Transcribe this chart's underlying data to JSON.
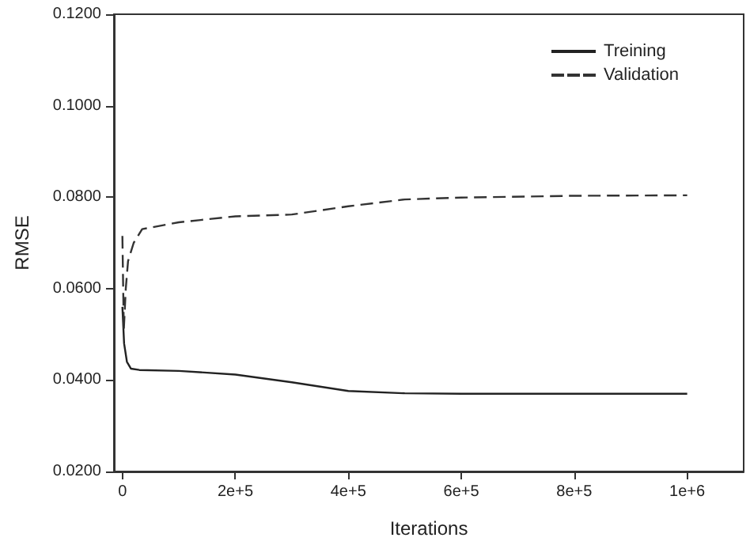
{
  "chart_data": {
    "type": "line",
    "xlabel": "Iterations",
    "ylabel": "RMSE",
    "xlim": [
      -15000,
      1100000
    ],
    "xticks": [
      0,
      {
        "value": 200000,
        "label": "2e+5"
      },
      {
        "value": 400000,
        "label": "4e+5"
      },
      {
        "value": 600000,
        "label": "6e+5"
      },
      {
        "value": 800000,
        "label": "8e+5"
      },
      {
        "value": 1000000,
        "label": "1e+6"
      }
    ],
    "ylim": [
      0.02,
      0.12
    ],
    "yticks": [
      {
        "value": 0.02,
        "label": "0.0200"
      },
      {
        "value": 0.04,
        "label": "0.0400"
      },
      {
        "value": 0.06,
        "label": "0.0600"
      },
      {
        "value": 0.08,
        "label": "0.0800"
      },
      {
        "value": 0.1,
        "label": "0.1000"
      },
      {
        "value": 0.12,
        "label": "0.1200"
      }
    ],
    "series": [
      {
        "name": "Treining",
        "color": "#222222",
        "line_style": "solid",
        "x": [
          0,
          3000,
          8000,
          15000,
          30000,
          100000,
          200000,
          300000,
          400000,
          500000,
          600000,
          800000,
          1000000
        ],
        "values": [
          0.056,
          0.048,
          0.044,
          0.0425,
          0.0422,
          0.042,
          0.0412,
          0.0395,
          0.0376,
          0.0371,
          0.037,
          0.037,
          0.037
        ]
      },
      {
        "name": "Validation",
        "color": "#333333",
        "line_style": "dashed",
        "x": [
          0,
          2500,
          6000,
          10000,
          20000,
          35000,
          100000,
          200000,
          300000,
          400000,
          500000,
          600000,
          800000,
          1000000
        ],
        "values": [
          0.0715,
          0.051,
          0.06,
          0.066,
          0.07,
          0.073,
          0.0745,
          0.0758,
          0.0762,
          0.078,
          0.0795,
          0.0799,
          0.0803,
          0.0804
        ]
      }
    ],
    "grid": false,
    "legend": "top right",
    "marker": "none"
  }
}
